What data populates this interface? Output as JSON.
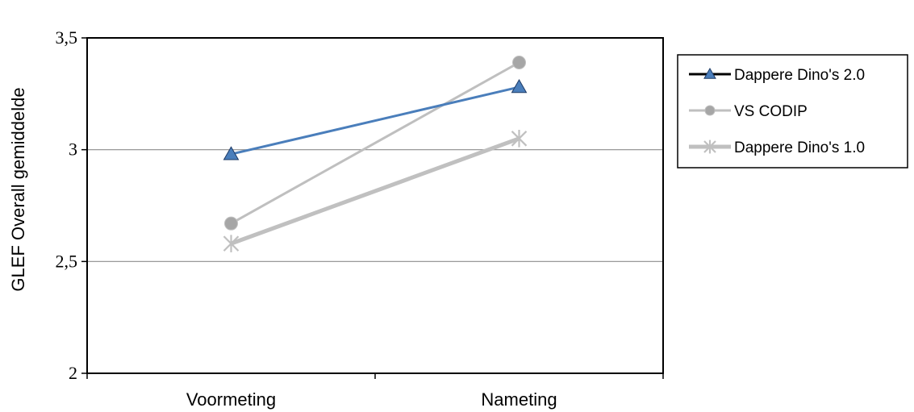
{
  "chart_data": {
    "type": "line",
    "title": "",
    "xlabel": "",
    "ylabel": "GLEF Overall gemiddelde",
    "categories": [
      "Voormeting",
      "Nameting"
    ],
    "ylim": [
      2,
      3.5
    ],
    "yticks": [
      2,
      2.5,
      3,
      3.5
    ],
    "ytick_labels": [
      "2",
      "2,5",
      "3",
      "3,5"
    ],
    "grid": true,
    "legend_position": "right",
    "series": [
      {
        "name": "Dappere Dino's 2.0",
        "values": [
          2.98,
          3.28
        ],
        "color": "#4a7ebb",
        "marker": "triangle"
      },
      {
        "name": "VS CODIP",
        "values": [
          2.67,
          3.39
        ],
        "color": "#bfbfbf",
        "marker": "circle"
      },
      {
        "name": "Dappere Dino's 1.0",
        "values": [
          2.58,
          3.05
        ],
        "color": "#c0c0c0",
        "marker": "asterisk"
      }
    ]
  }
}
